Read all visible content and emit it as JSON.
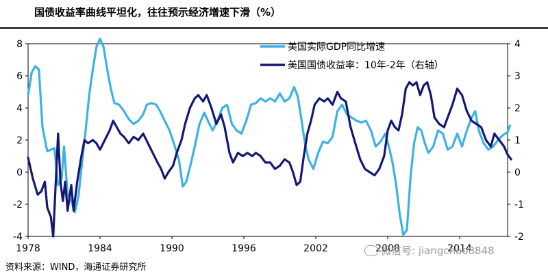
{
  "title": "国债收益率曲线平坦化，往往预示经济增速下滑（%）",
  "source": "资料来源：WIND，海通证券研究所",
  "watermark": "微信号: jiangchao8848",
  "chart_data": {
    "type": "line",
    "x_ticks": [
      "1978",
      "1984",
      "1990",
      "1996",
      "2002",
      "2008",
      "2014"
    ],
    "xlim": [
      1978,
      2018
    ],
    "left_axis": {
      "ylim": [
        -4,
        8
      ],
      "ticks": [
        "8",
        "6",
        "4",
        "2",
        "0",
        "-2",
        "-4"
      ]
    },
    "right_axis": {
      "ylim": [
        -2,
        4
      ],
      "ticks": [
        "4",
        "3",
        "2",
        "1",
        "0",
        "-1",
        "-2"
      ]
    },
    "legend_placement": "top-right",
    "series": [
      {
        "name": "美国实际GDP同比增速",
        "axis": "left",
        "color": "#3db1e6",
        "points": [
          [
            1978.0,
            4.8
          ],
          [
            1978.3,
            6.2
          ],
          [
            1978.6,
            6.6
          ],
          [
            1978.9,
            6.4
          ],
          [
            1979.2,
            2.8
          ],
          [
            1979.6,
            1.3
          ],
          [
            1979.9,
            1.4
          ],
          [
            1980.2,
            1.5
          ],
          [
            1980.5,
            -0.8
          ],
          [
            1980.8,
            -0.4
          ],
          [
            1981.0,
            1.6
          ],
          [
            1981.3,
            -1.4
          ],
          [
            1981.6,
            -1.8
          ],
          [
            1981.9,
            -2.5
          ],
          [
            1982.2,
            -1.5
          ],
          [
            1982.5,
            0.6
          ],
          [
            1982.8,
            2.6
          ],
          [
            1983.1,
            4.8
          ],
          [
            1983.4,
            6.4
          ],
          [
            1983.7,
            7.8
          ],
          [
            1984.0,
            8.3
          ],
          [
            1984.3,
            7.8
          ],
          [
            1984.6,
            6.4
          ],
          [
            1984.9,
            5.2
          ],
          [
            1985.2,
            4.3
          ],
          [
            1985.6,
            4.2
          ],
          [
            1986.0,
            3.8
          ],
          [
            1986.4,
            3.3
          ],
          [
            1986.8,
            3.0
          ],
          [
            1987.2,
            3.2
          ],
          [
            1987.6,
            3.6
          ],
          [
            1987.9,
            4.2
          ],
          [
            1988.3,
            4.3
          ],
          [
            1988.7,
            4.2
          ],
          [
            1989.0,
            3.8
          ],
          [
            1989.4,
            3.2
          ],
          [
            1989.8,
            2.6
          ],
          [
            1990.2,
            1.7
          ],
          [
            1990.6,
            0.7
          ],
          [
            1990.9,
            -0.9
          ],
          [
            1991.2,
            -0.6
          ],
          [
            1991.6,
            0.6
          ],
          [
            1991.9,
            1.6
          ],
          [
            1992.3,
            3.0
          ],
          [
            1992.7,
            3.7
          ],
          [
            1993.0,
            3.2
          ],
          [
            1993.4,
            2.6
          ],
          [
            1993.8,
            3.2
          ],
          [
            1994.2,
            4.0
          ],
          [
            1994.6,
            4.2
          ],
          [
            1995.0,
            3.0
          ],
          [
            1995.4,
            2.6
          ],
          [
            1995.8,
            2.4
          ],
          [
            1996.2,
            3.2
          ],
          [
            1996.6,
            4.2
          ],
          [
            1997.0,
            4.3
          ],
          [
            1997.4,
            4.6
          ],
          [
            1997.8,
            4.4
          ],
          [
            1998.2,
            4.6
          ],
          [
            1998.6,
            4.4
          ],
          [
            1999.0,
            4.9
          ],
          [
            1999.4,
            4.4
          ],
          [
            1999.8,
            4.6
          ],
          [
            2000.2,
            5.3
          ],
          [
            2000.5,
            4.7
          ],
          [
            2000.8,
            3.3
          ],
          [
            2001.1,
            1.8
          ],
          [
            2001.4,
            0.8
          ],
          [
            2001.8,
            0.2
          ],
          [
            2002.2,
            1.2
          ],
          [
            2002.6,
            1.9
          ],
          [
            2003.0,
            1.8
          ],
          [
            2003.4,
            2.2
          ],
          [
            2003.8,
            3.8
          ],
          [
            2004.2,
            4.2
          ],
          [
            2004.6,
            3.6
          ],
          [
            2005.0,
            3.4
          ],
          [
            2005.4,
            3.2
          ],
          [
            2005.8,
            3.1
          ],
          [
            2006.2,
            3.2
          ],
          [
            2006.6,
            2.6
          ],
          [
            2007.0,
            1.6
          ],
          [
            2007.4,
            1.9
          ],
          [
            2007.8,
            2.4
          ],
          [
            2008.1,
            1.6
          ],
          [
            2008.4,
            0.6
          ],
          [
            2008.7,
            -0.8
          ],
          [
            2009.0,
            -2.6
          ],
          [
            2009.3,
            -3.9
          ],
          [
            2009.6,
            -3.6
          ],
          [
            2009.9,
            -0.3
          ],
          [
            2010.2,
            1.8
          ],
          [
            2010.5,
            2.8
          ],
          [
            2010.8,
            2.6
          ],
          [
            2011.1,
            1.8
          ],
          [
            2011.4,
            1.2
          ],
          [
            2011.8,
            1.6
          ],
          [
            2012.2,
            2.6
          ],
          [
            2012.6,
            2.4
          ],
          [
            2013.0,
            1.4
          ],
          [
            2013.4,
            1.6
          ],
          [
            2013.8,
            2.4
          ],
          [
            2014.2,
            1.6
          ],
          [
            2014.6,
            2.6
          ],
          [
            2015.0,
            3.4
          ],
          [
            2015.3,
            3.8
          ],
          [
            2015.6,
            2.6
          ],
          [
            2016.0,
            1.8
          ],
          [
            2016.4,
            1.4
          ],
          [
            2016.8,
            1.6
          ],
          [
            2017.2,
            2.0
          ],
          [
            2017.6,
            2.3
          ],
          [
            2018.0,
            2.5
          ],
          [
            2018.2,
            2.9
          ]
        ]
      },
      {
        "name": "美国国债收益率：10年-2年（右轴）",
        "axis": "right",
        "color": "#151775",
        "points": [
          [
            1978.0,
            0.45
          ],
          [
            1978.4,
            -0.2
          ],
          [
            1978.8,
            -0.7
          ],
          [
            1979.1,
            -0.6
          ],
          [
            1979.4,
            -0.3
          ],
          [
            1979.6,
            -1.1
          ],
          [
            1979.9,
            -1.4
          ],
          [
            1980.1,
            -2.0
          ],
          [
            1980.3,
            -0.4
          ],
          [
            1980.5,
            1.2
          ],
          [
            1980.7,
            -0.3
          ],
          [
            1980.9,
            -0.9
          ],
          [
            1981.1,
            -0.3
          ],
          [
            1981.3,
            -1.2
          ],
          [
            1981.6,
            -0.4
          ],
          [
            1981.8,
            -1.2
          ],
          [
            1982.1,
            -0.3
          ],
          [
            1982.4,
            0.4
          ],
          [
            1982.7,
            1.0
          ],
          [
            1983.0,
            0.9
          ],
          [
            1983.4,
            1.0
          ],
          [
            1983.7,
            0.9
          ],
          [
            1984.0,
            0.7
          ],
          [
            1984.4,
            1.0
          ],
          [
            1984.8,
            1.3
          ],
          [
            1985.1,
            1.6
          ],
          [
            1985.4,
            1.4
          ],
          [
            1985.7,
            1.2
          ],
          [
            1986.0,
            1.1
          ],
          [
            1986.4,
            0.9
          ],
          [
            1986.8,
            1.1
          ],
          [
            1987.2,
            1.0
          ],
          [
            1987.6,
            1.2
          ],
          [
            1988.0,
            0.9
          ],
          [
            1988.4,
            0.6
          ],
          [
            1988.8,
            0.3
          ],
          [
            1989.1,
            0.1
          ],
          [
            1989.4,
            -0.2
          ],
          [
            1989.7,
            0.0
          ],
          [
            1990.1,
            0.2
          ],
          [
            1990.4,
            0.6
          ],
          [
            1990.8,
            1.0
          ],
          [
            1991.1,
            1.5
          ],
          [
            1991.5,
            2.0
          ],
          [
            1991.9,
            2.3
          ],
          [
            1992.2,
            2.4
          ],
          [
            1992.6,
            2.2
          ],
          [
            1992.9,
            2.4
          ],
          [
            1993.3,
            2.0
          ],
          [
            1993.7,
            1.5
          ],
          [
            1994.1,
            1.8
          ],
          [
            1994.4,
            1.4
          ],
          [
            1994.8,
            0.6
          ],
          [
            1995.1,
            0.3
          ],
          [
            1995.5,
            0.6
          ],
          [
            1995.9,
            0.5
          ],
          [
            1996.3,
            0.6
          ],
          [
            1996.7,
            0.5
          ],
          [
            1997.0,
            0.6
          ],
          [
            1997.4,
            0.5
          ],
          [
            1997.8,
            0.3
          ],
          [
            1998.2,
            0.3
          ],
          [
            1998.6,
            0.1
          ],
          [
            1999.0,
            0.2
          ],
          [
            1999.4,
            0.4
          ],
          [
            1999.8,
            0.3
          ],
          [
            2000.1,
            0.0
          ],
          [
            2000.4,
            -0.4
          ],
          [
            2000.7,
            -0.3
          ],
          [
            2001.0,
            0.5
          ],
          [
            2001.3,
            1.2
          ],
          [
            2001.6,
            1.6
          ],
          [
            2001.9,
            2.1
          ],
          [
            2002.3,
            2.3
          ],
          [
            2002.7,
            2.2
          ],
          [
            2003.0,
            2.3
          ],
          [
            2003.4,
            2.1
          ],
          [
            2003.8,
            2.5
          ],
          [
            2004.1,
            2.3
          ],
          [
            2004.5,
            2.2
          ],
          [
            2004.9,
            1.4
          ],
          [
            2005.3,
            0.9
          ],
          [
            2005.7,
            0.4
          ],
          [
            2006.1,
            0.1
          ],
          [
            2006.5,
            0.0
          ],
          [
            2006.9,
            -0.1
          ],
          [
            2007.3,
            0.1
          ],
          [
            2007.7,
            0.5
          ],
          [
            2008.0,
            1.3
          ],
          [
            2008.3,
            1.6
          ],
          [
            2008.6,
            1.4
          ],
          [
            2008.9,
            1.3
          ],
          [
            2009.2,
            1.8
          ],
          [
            2009.5,
            2.6
          ],
          [
            2009.8,
            2.8
          ],
          [
            2010.1,
            2.7
          ],
          [
            2010.4,
            2.8
          ],
          [
            2010.7,
            2.4
          ],
          [
            2011.0,
            2.7
          ],
          [
            2011.3,
            2.8
          ],
          [
            2011.6,
            2.4
          ],
          [
            2011.9,
            1.7
          ],
          [
            2012.3,
            1.5
          ],
          [
            2012.7,
            1.4
          ],
          [
            2013.0,
            1.7
          ],
          [
            2013.4,
            2.1
          ],
          [
            2013.8,
            2.6
          ],
          [
            2014.2,
            2.4
          ],
          [
            2014.6,
            1.9
          ],
          [
            2015.0,
            1.6
          ],
          [
            2015.4,
            1.5
          ],
          [
            2015.8,
            1.4
          ],
          [
            2016.2,
            1.0
          ],
          [
            2016.6,
            0.8
          ],
          [
            2016.9,
            1.2
          ],
          [
            2017.3,
            1.0
          ],
          [
            2017.7,
            0.8
          ],
          [
            2018.0,
            0.55
          ],
          [
            2018.3,
            0.4
          ]
        ]
      }
    ]
  }
}
